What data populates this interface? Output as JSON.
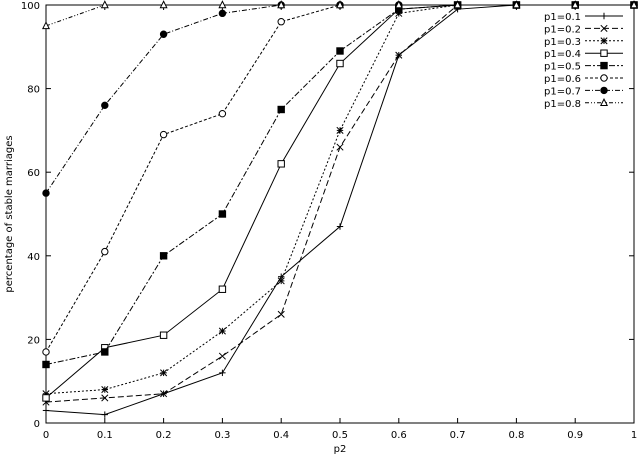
{
  "chart_data": {
    "type": "line",
    "title": "",
    "xlabel": "p2",
    "ylabel": "percentage of stable marriages",
    "xlim": [
      0,
      1
    ],
    "ylim": [
      0,
      100
    ],
    "xticks": [
      0,
      0.1,
      0.2,
      0.3,
      0.4,
      0.5,
      0.6,
      0.7,
      0.8,
      0.9,
      1
    ],
    "xtick_labels": [
      "0",
      "0.1",
      "0.2",
      "0.3",
      "0.4",
      "0.5",
      "0.6",
      "0.7",
      "0.8",
      "0.9",
      "1"
    ],
    "yticks": [
      0,
      20,
      40,
      60,
      80,
      100
    ],
    "ytick_labels": [
      "0",
      "20",
      "40",
      "60",
      "80",
      "100"
    ],
    "grid": false,
    "legend_position": "top-right",
    "x": [
      0,
      0.1,
      0.2,
      0.3,
      0.4,
      0.5,
      0.6,
      0.7,
      0.8,
      0.9,
      1
    ],
    "series": [
      {
        "name": "p1=0.1",
        "marker": "plus",
        "dash": "",
        "values": [
          3,
          2,
          7,
          12,
          35,
          47,
          88,
          99,
          100,
          100,
          100
        ]
      },
      {
        "name": "p1=0.2",
        "marker": "cross",
        "dash": "6,3",
        "values": [
          5,
          6,
          7,
          16,
          26,
          66,
          88,
          100,
          100,
          100,
          100
        ]
      },
      {
        "name": "p1=0.3",
        "marker": "star",
        "dash": "2,2",
        "values": [
          7,
          8,
          12,
          22,
          34,
          70,
          98,
          100,
          100,
          100,
          100
        ]
      },
      {
        "name": "p1=0.4",
        "marker": "square-open",
        "dash": "",
        "values": [
          6,
          18,
          21,
          32,
          62,
          86,
          99,
          100,
          100,
          100,
          100
        ]
      },
      {
        "name": "p1=0.5",
        "marker": "square-filled",
        "dash": "6,2,2,2",
        "values": [
          14,
          17,
          40,
          50,
          75,
          89,
          99,
          100,
          100,
          100,
          100
        ]
      },
      {
        "name": "p1=0.6",
        "marker": "circle-open",
        "dash": "3,2",
        "values": [
          17,
          41,
          69,
          74,
          96,
          100,
          100,
          100,
          100,
          100,
          100
        ]
      },
      {
        "name": "p1=0.7",
        "marker": "circle-filled",
        "dash": "5,2,1,2",
        "values": [
          55,
          76,
          93,
          98,
          100,
          100,
          100,
          100,
          100,
          100,
          100
        ]
      },
      {
        "name": "p1=0.8",
        "marker": "triangle-open",
        "dash": "4,2,1,2,1,2",
        "values": [
          95,
          100,
          100,
          100,
          100,
          100,
          100,
          100,
          100,
          100,
          100
        ]
      }
    ]
  }
}
